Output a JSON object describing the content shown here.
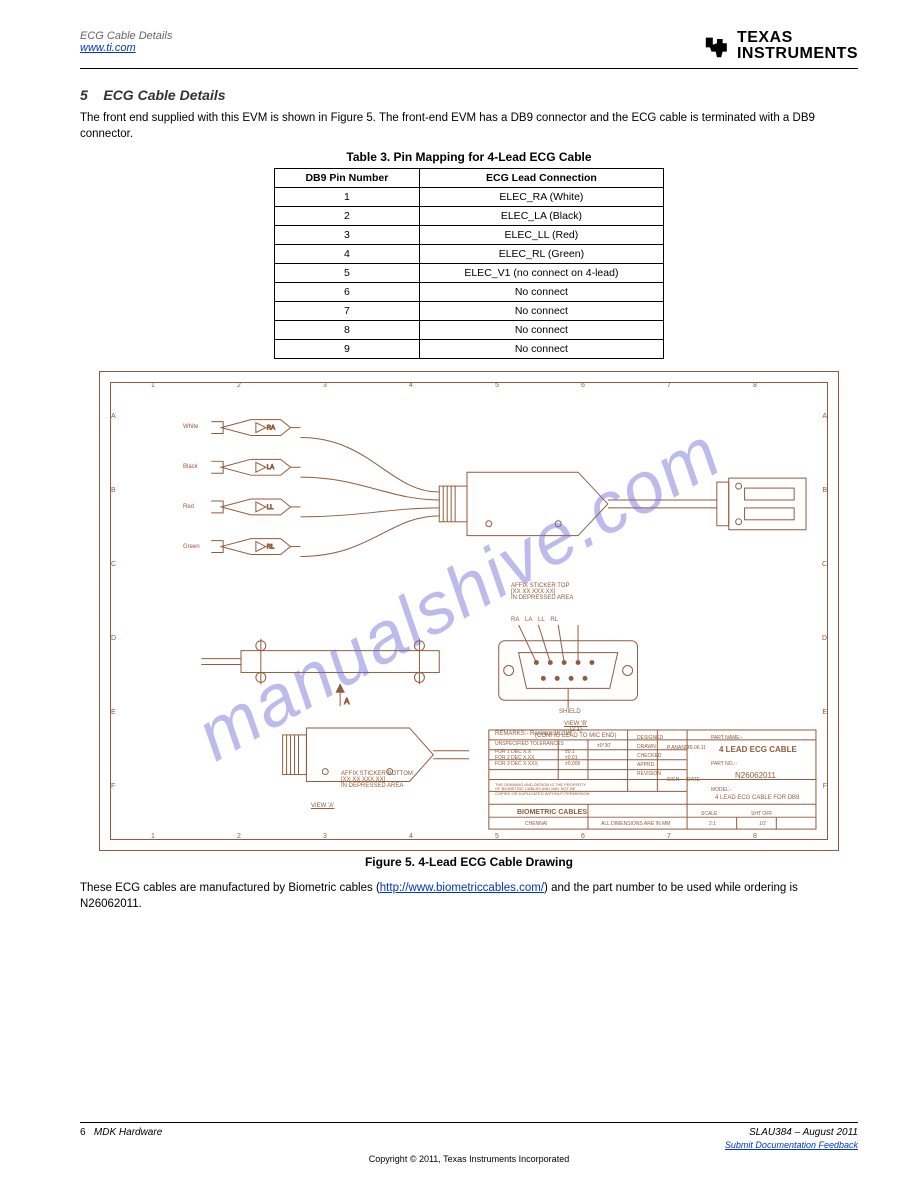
{
  "header": {
    "left": "ECG Cable Details",
    "link_text": "www.ti.com",
    "brand_line1": "TEXAS",
    "brand_line2": "INSTRUMENTS"
  },
  "section": {
    "number": "5",
    "title": "ECG Cable Details",
    "paragraph": "The front end supplied with this EVM is shown in Figure 5. The front-end EVM has a DB9 connector and the ECG cable is terminated with a DB9 connector.",
    "table_caption": "Table 3. Pin Mapping for 4-Lead ECG Cable",
    "figure_caption": "Figure 5. 4-Lead ECG Cable Drawing",
    "closing": "These ECG cables are manufactured by Biometric cables (http://www.biometriccables.com/) and the part number to be used while ordering is N26062011."
  },
  "table": {
    "columns": [
      "DB9 Pin Number",
      "ECG Lead Connection"
    ],
    "rows": [
      [
        "1",
        "ELEC_RA (White)"
      ],
      [
        "2",
        "ELEC_LA (Black)"
      ],
      [
        "3",
        "ELEC_LL (Red)"
      ],
      [
        "4",
        "ELEC_RL (Green)"
      ],
      [
        "5",
        "ELEC_V1 (no connect on 4-lead)"
      ],
      [
        "6",
        "No connect"
      ],
      [
        "7",
        "No connect"
      ],
      [
        "8",
        "No connect"
      ],
      [
        "9",
        "No connect"
      ]
    ]
  },
  "figure": {
    "ruler_top": [
      "1",
      "2",
      "3",
      "4",
      "5",
      "6",
      "7",
      "8"
    ],
    "ruler_bottom": [
      "1",
      "2",
      "3",
      "4",
      "5",
      "6",
      "7",
      "8"
    ],
    "ruler_left": [
      "A",
      "B",
      "C",
      "D",
      "E",
      "F"
    ],
    "ruler_right": [
      "A",
      "B",
      "C",
      "D",
      "E",
      "F"
    ],
    "lead_labels": [
      "White",
      "Black",
      "Red",
      "Green"
    ],
    "lead_codes": [
      "RA",
      "LA",
      "LL",
      "RL"
    ],
    "sticker_top": "AFFIX STICKER TOP",
    "sticker_top2": "[XX XX XXX XX]",
    "sticker_top3": "IN DEPRESSED AREA",
    "sticker_bot": "AFFIX STICKER BOTTOM",
    "sticker_bot2": "[XX XX XXX XX]",
    "sticker_bot3": "IN DEPRESSED AREA",
    "view_a": "VIEW 'A'",
    "view_b": "VIEW 'B'",
    "view_b2": "(2:1)",
    "view_b3": "(CONFIG LEAD TO MIC END)",
    "shield": "SHIELD",
    "remarks": "REMARKS:- Resistor 1K/1W",
    "titleblock": {
      "tolerances": "UNSPECIFIED TOLERANCES",
      "linear": "LINEAR",
      "angular": "ANGULAR",
      "dec1": "FOR 1 DEC X.X",
      "dec2": "FOR 2 DEC X.XX",
      "dec3": "FOR 3 DEC X.XXX",
      "d1": "±0.1",
      "d2": "±0.01",
      "d3": "±0.005",
      "ang": "±0°30'",
      "prop": "THE DRAWING AND DESIGN IS THE PROPERTY OF BIOMETRIC CABLES AND MAY NOT BE COPIED OR DUPLICATED WITHOUT PERMISSION",
      "company": "BIOMETRIC CABLES",
      "designed": "DESIGNED",
      "drawn": "DRAWN",
      "checked": "CHECKED",
      "apprd": "APPRD.",
      "revision": "REVISION",
      "sign": "SIGN",
      "date": "DATE",
      "drawn_name": "P.ANAND",
      "drawn_date": "26.06.11",
      "partname_label": "PART NAME:-",
      "partname": "4 LEAD ECG CABLE",
      "partno_label": "PART NO.:-",
      "partno": "N26062011",
      "model_label": "MODEL:-",
      "model": "4 LEAD ECG CABLE FOR DB9",
      "scale_label": "SCALE",
      "scale": "2:1",
      "shtoff_label": "SHT OFF",
      "shtoff": "1/2",
      "dims": "ALL DIMENSIONS ARE IN MM",
      "chennai": "CHENNAI"
    },
    "colors": {
      "line": "#935b3a",
      "background": "#ffffff"
    }
  },
  "footer": {
    "page": "6",
    "title": "MDK Hardware",
    "rev": "SLAU384 – August 2011",
    "sub1": "Submit Documentation Feedback",
    "copyright": "Copyright © 2011, Texas Instruments Incorporated"
  },
  "watermark": "manualshive.com"
}
